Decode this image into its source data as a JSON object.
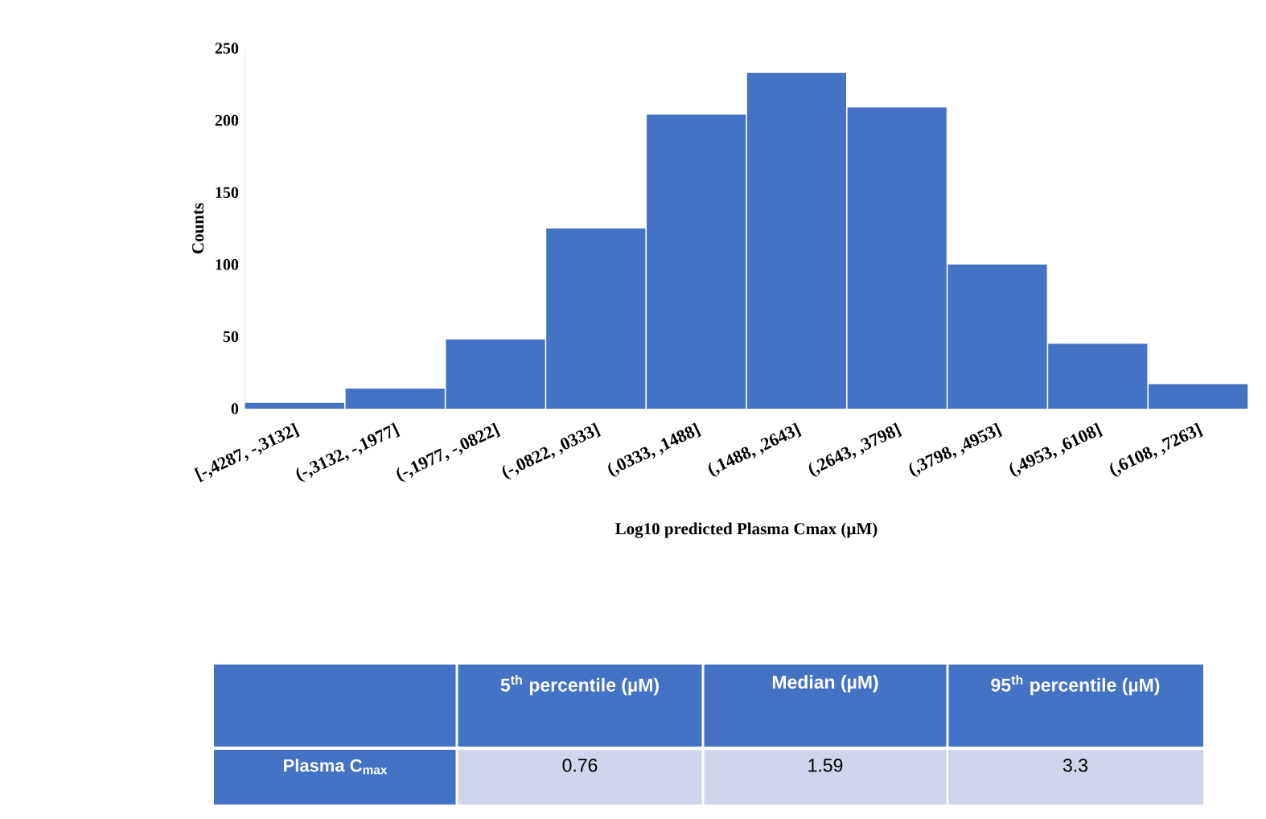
{
  "chart_data": [
    {
      "type": "bar",
      "xlabel": "Log10 predicted Plasma Cmax (µM)",
      "ylabel": "Counts",
      "categories": [
        "[-,4287, -,3132]",
        "(-,3132, -,1977]",
        "(-,1977, -,0822]",
        "(-,0822, ,0333]",
        "(,0333, ,1488]",
        "(,1488, ,2643]",
        "(,2643, ,3798]",
        "(,3798, ,4953]",
        "(,4953, ,6108]",
        "(,6108, ,7263]"
      ],
      "values": [
        4,
        14,
        48,
        125,
        204,
        233,
        209,
        100,
        45,
        17
      ],
      "color": "#4472c4",
      "ylim": [
        0,
        250
      ],
      "yticks": [
        0,
        50,
        100,
        150,
        200,
        250
      ],
      "grid": false
    },
    {
      "type": "other",
      "annotations": [
        "5$^{th}$ percentile (µM)",
        "Median (µM)",
        "95$^{th}$ percentile (µM)",
        "Plasma C$_{max}$",
        "0.76",
        "1.59",
        "3.3"
      ]
    }
  ]
}
